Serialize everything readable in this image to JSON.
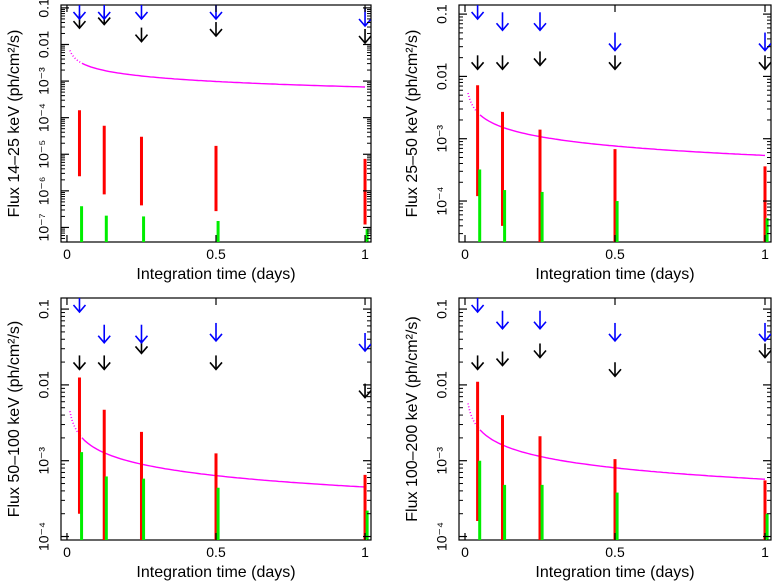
{
  "chart_data": [
    {
      "type": "scatter",
      "xlabel": "Integration time (days)",
      "ylabel": "Flux 14–25 keV (ph/cm²/s)",
      "xlim": [
        -0.02,
        1.02
      ],
      "ylim": [
        4e-08,
        0.12
      ],
      "yscale": "log",
      "xticks": [
        {
          "v": 0,
          "label": "0"
        },
        {
          "v": 0.5,
          "label": "0.5"
        },
        {
          "v": 1,
          "label": "1"
        }
      ],
      "yticks": [
        {
          "v": 1e-07,
          "label": "10⁻⁷"
        },
        {
          "v": 1e-06,
          "label": "10⁻⁶"
        },
        {
          "v": 1e-05,
          "label": "10⁻⁵"
        },
        {
          "v": 0.0001,
          "label": "10⁻⁴"
        },
        {
          "v": 0.001,
          "label": "10⁻³"
        },
        {
          "v": 0.01,
          "label": "0.01"
        },
        {
          "v": 0.1,
          "label": "0.1"
        }
      ],
      "sensitivity_curve": {
        "color": "#ff00ff",
        "a": 0.00069,
        "t0": 0.01,
        "t1": 1.0
      },
      "red_bars": {
        "color": "#ff0000",
        "items": [
          {
            "x": 0.042,
            "low": 2.5e-06,
            "high": 0.00016
          },
          {
            "x": 0.125,
            "low": 8e-07,
            "high": 6e-05
          },
          {
            "x": 0.25,
            "low": 4e-07,
            "high": 3e-05
          },
          {
            "x": 0.5,
            "low": 2.8e-07,
            "high": 1.7e-05
          },
          {
            "x": 1.0,
            "low": 1.2e-07,
            "high": 7.5e-06
          }
        ]
      },
      "green_bars": {
        "color": "#00ee00",
        "items": [
          {
            "x": 0.049,
            "low": 4e-08,
            "high": 3.8e-07
          },
          {
            "x": 0.132,
            "low": 4e-08,
            "high": 2.1e-07
          },
          {
            "x": 0.257,
            "low": 4e-08,
            "high": 2e-07
          },
          {
            "x": 0.507,
            "low": 4e-08,
            "high": 1.5e-07
          },
          {
            "x": 1.007,
            "low": 4e-08,
            "high": 9e-08
          }
        ]
      },
      "black_arrows": {
        "color": "#000000",
        "items": [
          {
            "x": 0.042,
            "y": 0.028
          },
          {
            "x": 0.125,
            "y": 0.035
          },
          {
            "x": 0.25,
            "y": 0.012
          },
          {
            "x": 0.5,
            "y": 0.017
          },
          {
            "x": 1.0,
            "y": 0.011
          }
        ]
      },
      "blue_arrows": {
        "color": "#0000ff",
        "items": [
          {
            "x": 0.042,
            "y": 0.1
          },
          {
            "x": 0.125,
            "y": 0.12
          },
          {
            "x": 0.25,
            "y": 0.09
          },
          {
            "x": 0.5,
            "y": 0.1
          },
          {
            "x": 1.0,
            "y": 0.032
          }
        ]
      }
    },
    {
      "type": "scatter",
      "xlabel": "Integration time (days)",
      "ylabel": "Flux 25–50 keV (ph/cm²/s)",
      "xlim": [
        -0.02,
        1.02
      ],
      "ylim": [
        2.2e-05,
        0.14
      ],
      "yscale": "log",
      "xticks": [
        {
          "v": 0,
          "label": "0"
        },
        {
          "v": 0.5,
          "label": "0.5"
        },
        {
          "v": 1,
          "label": "1"
        }
      ],
      "yticks": [
        {
          "v": 0.0001,
          "label": "10⁻⁴"
        },
        {
          "v": 0.001,
          "label": "10⁻³"
        },
        {
          "v": 0.01,
          "label": "0.01"
        },
        {
          "v": 0.1,
          "label": "0.1"
        }
      ],
      "sensitivity_curve": {
        "color": "#ff00ff",
        "a": 0.00054,
        "t0": 0.01,
        "t1": 1.0
      },
      "red_bars": {
        "color": "#ff0000",
        "items": [
          {
            "x": 0.042,
            "low": 0.00012,
            "high": 0.0072
          },
          {
            "x": 0.125,
            "low": 4e-05,
            "high": 0.0027
          },
          {
            "x": 0.25,
            "low": 2.2e-05,
            "high": 0.0014
          },
          {
            "x": 0.5,
            "low": 2.2e-05,
            "high": 0.00068
          },
          {
            "x": 1.0,
            "low": 2.2e-05,
            "high": 0.00036
          }
        ]
      },
      "green_bars": {
        "color": "#00ee00",
        "items": [
          {
            "x": 0.049,
            "low": 2.2e-05,
            "high": 0.00032
          },
          {
            "x": 0.132,
            "low": 2.2e-05,
            "high": 0.00015
          },
          {
            "x": 0.257,
            "low": 2.2e-05,
            "high": 0.00014
          },
          {
            "x": 0.507,
            "low": 2.2e-05,
            "high": 0.0001
          },
          {
            "x": 1.007,
            "low": 2.2e-05,
            "high": 5.3e-05
          }
        ]
      },
      "black_arrows": {
        "color": "#000000",
        "items": [
          {
            "x": 0.042,
            "y": 0.013
          },
          {
            "x": 0.125,
            "y": 0.013
          },
          {
            "x": 0.25,
            "y": 0.015
          },
          {
            "x": 0.5,
            "y": 0.013
          },
          {
            "x": 1.0,
            "y": 0.013
          }
        ]
      },
      "blue_arrows": {
        "color": "#0000ff",
        "items": [
          {
            "x": 0.042,
            "y": 0.12
          },
          {
            "x": 0.125,
            "y": 0.055
          },
          {
            "x": 0.25,
            "y": 0.055
          },
          {
            "x": 0.5,
            "y": 0.026
          },
          {
            "x": 1.0,
            "y": 0.026
          }
        ]
      }
    },
    {
      "type": "scatter",
      "xlabel": "Integration time (days)",
      "ylabel": "Flux 50–100 keV (ph/cm²/s)",
      "xlim": [
        -0.02,
        1.02
      ],
      "ylim": [
        9e-05,
        0.14
      ],
      "yscale": "log",
      "xticks": [
        {
          "v": 0,
          "label": "0"
        },
        {
          "v": 0.5,
          "label": "0.5"
        },
        {
          "v": 1,
          "label": "1"
        }
      ],
      "yticks": [
        {
          "v": 0.0001,
          "label": "10⁻⁴"
        },
        {
          "v": 0.001,
          "label": "10⁻³"
        },
        {
          "v": 0.01,
          "label": "0.01"
        },
        {
          "v": 0.1,
          "label": "0.1"
        }
      ],
      "sensitivity_curve": {
        "color": "#ff00ff",
        "a": 0.00045,
        "t0": 0.01,
        "t1": 1.0
      },
      "red_bars": {
        "color": "#ff0000",
        "items": [
          {
            "x": 0.042,
            "low": 0.0002,
            "high": 0.0125
          },
          {
            "x": 0.125,
            "low": 9e-05,
            "high": 0.0047
          },
          {
            "x": 0.25,
            "low": 9e-05,
            "high": 0.0024
          },
          {
            "x": 0.5,
            "low": 9e-05,
            "high": 0.00125
          },
          {
            "x": 1.0,
            "low": 9e-05,
            "high": 0.00065
          }
        ]
      },
      "green_bars": {
        "color": "#00ee00",
        "items": [
          {
            "x": 0.049,
            "low": 9e-05,
            "high": 0.0013
          },
          {
            "x": 0.132,
            "low": 9e-05,
            "high": 0.00062
          },
          {
            "x": 0.257,
            "low": 9e-05,
            "high": 0.00058
          },
          {
            "x": 0.507,
            "low": 9e-05,
            "high": 0.00044
          },
          {
            "x": 1.007,
            "low": 9e-05,
            "high": 0.00022
          }
        ]
      },
      "black_arrows": {
        "color": "#000000",
        "items": [
          {
            "x": 0.042,
            "y": 0.016
          },
          {
            "x": 0.125,
            "y": 0.016
          },
          {
            "x": 0.25,
            "y": 0.026
          },
          {
            "x": 0.5,
            "y": 0.016
          },
          {
            "x": 1.0,
            "y": 0.0068
          }
        ]
      },
      "blue_arrows": {
        "color": "#0000ff",
        "items": [
          {
            "x": 0.042,
            "y": 0.12
          },
          {
            "x": 0.125,
            "y": 0.036
          },
          {
            "x": 0.25,
            "y": 0.036
          },
          {
            "x": 0.5,
            "y": 0.038
          },
          {
            "x": 1.0,
            "y": 0.028
          }
        ]
      }
    },
    {
      "type": "scatter",
      "xlabel": "Integration time (days)",
      "ylabel": "Flux 100–200 keV (ph/cm²/s)",
      "xlim": [
        -0.02,
        1.02
      ],
      "ylim": [
        9e-05,
        0.14
      ],
      "yscale": "log",
      "xticks": [
        {
          "v": 0,
          "label": "0"
        },
        {
          "v": 0.5,
          "label": "0.5"
        },
        {
          "v": 1,
          "label": "1"
        }
      ],
      "yticks": [
        {
          "v": 0.0001,
          "label": "10⁻⁴"
        },
        {
          "v": 0.001,
          "label": "10⁻³"
        },
        {
          "v": 0.01,
          "label": "0.01"
        },
        {
          "v": 0.1,
          "label": "0.1"
        }
      ],
      "sensitivity_curve": {
        "color": "#ff00ff",
        "a": 0.00057,
        "t0": 0.01,
        "t1": 1.0
      },
      "red_bars": {
        "color": "#ff0000",
        "items": [
          {
            "x": 0.042,
            "low": 0.00016,
            "high": 0.011
          },
          {
            "x": 0.125,
            "low": 9e-05,
            "high": 0.004
          },
          {
            "x": 0.25,
            "low": 9e-05,
            "high": 0.0021
          },
          {
            "x": 0.5,
            "low": 9e-05,
            "high": 0.00105
          },
          {
            "x": 1.0,
            "low": 9e-05,
            "high": 0.00055
          }
        ]
      },
      "green_bars": {
        "color": "#00ee00",
        "items": [
          {
            "x": 0.049,
            "low": 9e-05,
            "high": 0.001
          },
          {
            "x": 0.132,
            "low": 9e-05,
            "high": 0.00048
          },
          {
            "x": 0.257,
            "low": 9e-05,
            "high": 0.00048
          },
          {
            "x": 0.507,
            "low": 9e-05,
            "high": 0.00038
          },
          {
            "x": 1.007,
            "low": 9e-05,
            "high": 0.0002
          }
        ]
      },
      "black_arrows": {
        "color": "#000000",
        "items": [
          {
            "x": 0.042,
            "y": 0.016
          },
          {
            "x": 0.125,
            "y": 0.018
          },
          {
            "x": 0.25,
            "y": 0.023
          },
          {
            "x": 0.5,
            "y": 0.013
          },
          {
            "x": 1.0,
            "y": 0.023
          }
        ]
      },
      "blue_arrows": {
        "color": "#0000ff",
        "items": [
          {
            "x": 0.042,
            "y": 0.12
          },
          {
            "x": 0.125,
            "y": 0.055
          },
          {
            "x": 0.25,
            "y": 0.055
          },
          {
            "x": 0.5,
            "y": 0.038
          },
          {
            "x": 1.0,
            "y": 0.038
          }
        ]
      }
    }
  ]
}
